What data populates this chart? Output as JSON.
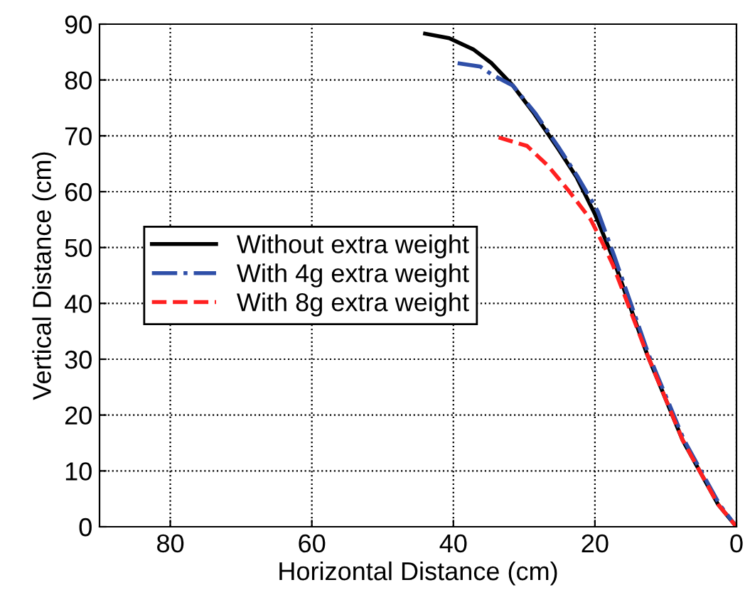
{
  "chart_data": {
    "type": "line",
    "xlabel": "Horizontal Distance (cm)",
    "ylabel": "Vertical Distance (cm)",
    "xlim": [
      90,
      0
    ],
    "ylim": [
      0,
      90
    ],
    "xticks": [
      80,
      60,
      40,
      20,
      0
    ],
    "yticks": [
      0,
      10,
      20,
      30,
      40,
      50,
      60,
      70,
      80,
      90
    ],
    "grid": true,
    "legend": "center left",
    "series": [
      {
        "name": "Without extra weight",
        "color": "#000000",
        "line_style": "solid",
        "x": [
          44,
          40.6,
          37.2,
          34.6,
          31.6,
          28.6,
          25.2,
          22.6,
          20,
          17.6,
          12.6,
          7.6,
          2.6,
          0
        ],
        "values": [
          88.3,
          87.5,
          85.5,
          83,
          79,
          74,
          67.7,
          62.6,
          56,
          48.6,
          30.8,
          15.5,
          4,
          0
        ]
      },
      {
        "name": "With 4g extra weight",
        "color": "#2f4fa8",
        "line_style": "dashdot",
        "x": [
          39.4,
          36.2,
          34.6,
          31.6,
          28.4,
          25,
          22.4,
          19.6,
          17.3,
          12.4,
          7.4,
          2.4,
          0
        ],
        "values": [
          83,
          82.4,
          81,
          79,
          74,
          67.7,
          62.6,
          56.5,
          48.6,
          30.8,
          15.5,
          4,
          0
        ]
      },
      {
        "name": "With 8g extra weight",
        "color": "#ff2020",
        "line_style": "dashed",
        "x": [
          33.6,
          29.6,
          26.6,
          23.6,
          20.6,
          18.6,
          17.5,
          12.6,
          7.6,
          2.6,
          0
        ],
        "values": [
          69.7,
          68.2,
          64.6,
          60,
          55,
          50,
          47,
          30.8,
          15.5,
          4,
          0
        ]
      }
    ]
  }
}
